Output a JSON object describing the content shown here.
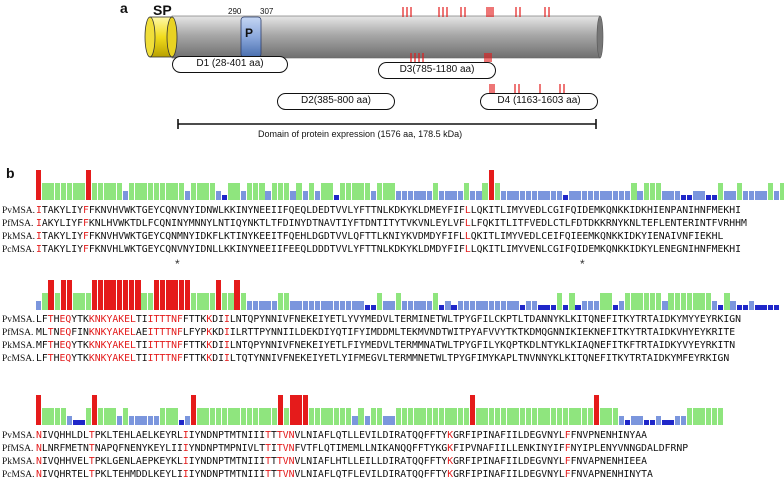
{
  "panel_a": {
    "label": "a",
    "sp_label": "SP",
    "p_label": "P",
    "pos_start": "290",
    "pos_end": "307",
    "domains": [
      "D1 (28-401 aa)",
      "D2(385-800 aa)",
      "D3(785-1180 aa)",
      "D4 (1163-1603 aa)"
    ],
    "expression_label": "Domain of protein expression (1576 aa, 178.5 kDa)"
  },
  "panel_b": {
    "label": "b",
    "blocks": [
      {
        "names": [
          "PvMSA.",
          "PfMSA.",
          "PkMSA.",
          "PcMSA."
        ],
        "seqs": [
          "ITAKYLIYFFKNVHVWKTGEYCQNVNYIDNWLKKINYNEEIIFQEQLDEDTVVLYFTTNLKDKYKLDMEYFIFLLQKITLIMYVEDLCGIFQIDEMKQNKKIDKHIENPANIHNFMEKHI",
          "IAKYLIYFFKNLHVWKTDLFCQNINYMNNYLNTIQYNKTLTFDINYDTNAVTIYFTDNTITYTVKVNLEYLVFLLFQKITLITFVEDLCTLFDTDKKRNYKNLTEFLENTERINTFVRHHM",
          "ITAKYLIYFFKNVHVWKTGEYCQNMNYIDKFLKTINYKEEITFQEHLDGDTVVLQFTTLKNIYKVDMDYFIFLLQKITLIMYVEDLCEIFQIEEMKQNKKIDKYIENAIVNFIEKHL",
          "ITAKYLIYFFKNVHLWKTGEYCQNVNYIDNLLKKINYNEEIIFEEQLDDDTVVLYFTTNLKDKYKLDMDYFIFLLQKITLIMYVENLCGIFQIDEMKQNKKIDKYLENEGNIHNFMEKHI"
        ]
      },
      {
        "names": [
          "PvMSA.",
          "PfMSA.",
          "PkMSA.",
          "PcMSA."
        ],
        "seqs": [
          "LFTHEQYTKKNKYAKELTIITTTNFFTTKKDIILNTQPYNNIVFNEKEIYETLYVYMEDVLTERMINETWLTPYGFILCKPTLTDANNYKLKITQNEFITKYTRTAIDKYMYYEYRKIGN",
          "MLTNEQFINKNKYAKELAEITTTNFLFYPKKDIILRTTPYNNIILDEKDIYQTIFYIMDDMLTEKMVNDTWITPYAFVVYTKTKDMQGNNIKIEKNEFITKYTRTAIDKVHYEYKRITE",
          "MFTHEQYTKKNKYAKELTIITTTNFFTTKKDIILNTQPYNNIVFNEKEIYETLFIYMEDVLTERMMNATWLTPYGFILYKQPTKDLNTYKLKIAQNEFITKFTRTAIDKYVYEYRKITN",
          "LFTHEQYTKKNKYAKELTIITTTNFFTTKKDIILTQTYNNIVFNEKEIYETLYIFMEGVLTERMMNETWLTPYGFIMYKAPLTNVNNYKLKITQNEFITKYTRTAIDKYMFEYRKIGN"
        ]
      },
      {
        "names": [
          "PvMSA.",
          "PfMSA.",
          "PkMSA.",
          "PcMSA."
        ],
        "seqs": [
          "NIVQHHLDLTPKLTEHLAELKEYRLIIYNDNPTMTNIIITTTVNVLNIAFLQTLLEVILDIRATQQFFTYKGRFIPINAFIILDEGVNYLFFNVPNENHINYAA",
          "NLNRFMETNTNAPQFNENYKEYLIIIYNDNPTMPNIVLTTITVNFVTFLQTIMEMLLNIKANQQFFTYKGKFIPVNAFIILLENKINYIFFNYIPLENYVNNGDALDFRNP",
          "NIVQHHVELTPKLGENLAEPKEYKLIIYNDNPTMTNIIITTTVNVLNIAFLHTLLEILLDIRATQQFFTYKGRFIPINAFIILDEGVNYLFFNVAPNENHIEEA",
          "NIVQHRTELTPKLTEHMDDLKEYLIIIYNDNPTMTNIIITTTVNVLNIAFLQTFLEVILDIRATQQFFTYKGRFIPINAFIILDEGVNYLFFNVAPNENHINYTA"
        ]
      }
    ]
  },
  "colors": {
    "conserved_bar": "#e51b1b",
    "similar_bar": "#8fe57e",
    "weak_bar": "#7b96dd",
    "minimal_bar": "#1f27c9",
    "protein_body": "#a0a0a0",
    "sp_body": "#f2e022",
    "p_region": "#8aa7dc",
    "residue_highlight": "#e31b1b"
  }
}
